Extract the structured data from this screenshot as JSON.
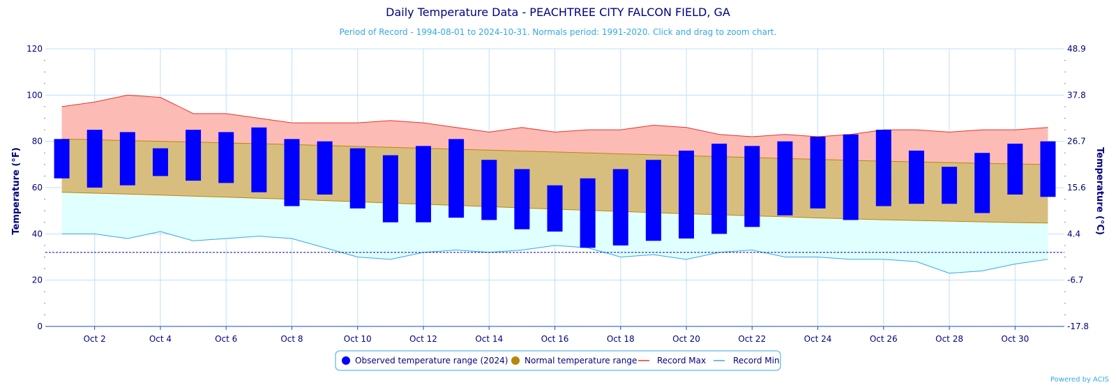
{
  "chart_data": {
    "type": "bar",
    "title": "Daily Temperature Data - PEACHTREE CITY FALCON FIELD, GA",
    "subtitle": "Period of Record - 1994-08-01 to 2024-10-31. Normals period: 1991-2020. Click and drag to zoom chart.",
    "credit": "Powered by ACIS",
    "ylabel": "Temperature (°F)",
    "ylabel_right": "Temperature (°C)",
    "ylim": [
      0,
      120
    ],
    "yticks": [
      "0",
      "20",
      "40",
      "60",
      "80",
      "100",
      "120"
    ],
    "yticks_right": [
      "-17.8",
      "-6.7",
      "4.4",
      "15.6",
      "26.7",
      "37.8",
      "48.9"
    ],
    "xticks": [
      "Oct 2",
      "Oct 4",
      "Oct 6",
      "Oct 8",
      "Oct 10",
      "Oct 12",
      "Oct 14",
      "Oct 16",
      "Oct 18",
      "Oct 20",
      "Oct 22",
      "Oct 24",
      "Oct 26",
      "Oct 28",
      "Oct 30"
    ],
    "days": [
      1,
      2,
      3,
      4,
      5,
      6,
      7,
      8,
      9,
      10,
      11,
      12,
      13,
      14,
      15,
      16,
      17,
      18,
      19,
      20,
      21,
      22,
      23,
      24,
      25,
      26,
      27,
      28,
      29,
      30,
      31
    ],
    "freezing_line": 32,
    "series": [
      {
        "name": "Observed temperature range (2024)",
        "color": "#0000ff",
        "high": [
          81,
          85,
          84,
          77,
          85,
          84,
          86,
          81,
          80,
          77,
          74,
          78,
          81,
          72,
          68,
          61,
          64,
          68,
          72,
          76,
          79,
          78,
          80,
          82,
          83,
          85,
          76,
          69,
          75,
          79,
          80
        ],
        "low": [
          64,
          60,
          61,
          65,
          63,
          62,
          58,
          52,
          57,
          51,
          45,
          45,
          47,
          46,
          42,
          41,
          34,
          35,
          37,
          38,
          40,
          43,
          48,
          51,
          46,
          52,
          53,
          53,
          49,
          57,
          56
        ]
      },
      {
        "name": "Normal temperature range",
        "color": "#b8860b",
        "high": [
          81,
          80.7,
          80.3,
          80,
          79.7,
          79.3,
          79,
          78.6,
          78.2,
          77.8,
          77.4,
          77,
          76.6,
          76.2,
          75.8,
          75.4,
          75,
          74.6,
          74.2,
          73.8,
          73.4,
          73,
          72.6,
          72.2,
          71.8,
          71.4,
          71.1,
          70.8,
          70.5,
          70.2,
          70
        ],
        "low": [
          58,
          57.6,
          57.2,
          56.8,
          56.3,
          55.9,
          55.4,
          55,
          54.4,
          53.9,
          53.3,
          52.8,
          52.3,
          51.8,
          51.2,
          50.7,
          50.2,
          49.7,
          49.2,
          48.7,
          48.3,
          47.8,
          47.4,
          46.9,
          46.5,
          46.1,
          45.8,
          45.5,
          45.2,
          44.9,
          44.7
        ],
        "fill_color": "#d8be7e"
      },
      {
        "name": "Record Max",
        "color": "#e8332a",
        "fill_color": "#fdbbb6",
        "values": [
          95,
          97,
          100,
          99,
          92,
          92,
          90,
          88,
          88,
          88,
          89,
          88,
          86,
          84,
          86,
          84,
          85,
          85,
          87,
          86,
          83,
          82,
          83,
          82,
          83,
          85,
          85,
          84,
          85,
          85,
          86
        ]
      },
      {
        "name": "Record Min",
        "color": "#33a8e6",
        "fill_color": "#e0ffff",
        "values": [
          40,
          40,
          38,
          41,
          37,
          38,
          39,
          38,
          34,
          30,
          29,
          32,
          33,
          32,
          33,
          35,
          34,
          30,
          31,
          29,
          32,
          33,
          30,
          30,
          29,
          29,
          28,
          23,
          24,
          27,
          29
        ]
      }
    ],
    "legend": {
      "placement": "bottom-center",
      "items": [
        {
          "label": "Observed temperature range (2024)",
          "marker": "dot",
          "color": "#0000ff"
        },
        {
          "label": "Normal temperature range",
          "marker": "dot",
          "color": "#b8860b"
        },
        {
          "label": "Record Max",
          "marker": "line",
          "color": "#e8332a"
        },
        {
          "label": "Record Min",
          "marker": "line",
          "color": "#33a8e6"
        }
      ]
    }
  }
}
